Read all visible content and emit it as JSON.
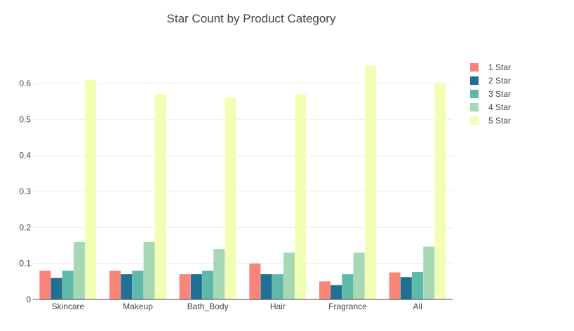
{
  "chart_data": {
    "type": "bar",
    "title": "Star Count by Product Category",
    "xlabel": "",
    "ylabel": "",
    "categories": [
      "Skincare",
      "Makeup",
      "Bath_Body",
      "Hair",
      "Fragrance",
      "All"
    ],
    "ylim": [
      0,
      0.68
    ],
    "yticks": [
      0,
      0.1,
      0.2,
      0.3,
      0.4,
      0.5,
      0.6
    ],
    "ytick_labels": [
      "0",
      "0.1",
      "0.2",
      "0.3",
      "0.4",
      "0.5",
      "0.6"
    ],
    "grid": true,
    "legend_position": "top-right",
    "series": [
      {
        "name": "1 Star",
        "color": "#f8847a",
        "values": [
          0.08,
          0.08,
          0.07,
          0.1,
          0.05,
          0.075
        ]
      },
      {
        "name": "2 Star",
        "color": "#226f94",
        "values": [
          0.06,
          0.07,
          0.07,
          0.07,
          0.04,
          0.062
        ]
      },
      {
        "name": "3 Star",
        "color": "#5fb9a9",
        "values": [
          0.08,
          0.08,
          0.08,
          0.07,
          0.07,
          0.076
        ]
      },
      {
        "name": "4 Star",
        "color": "#a6d8b5",
        "values": [
          0.16,
          0.16,
          0.14,
          0.13,
          0.13,
          0.147
        ]
      },
      {
        "name": "5 Star",
        "color": "#f0ffb3",
        "values": [
          0.61,
          0.57,
          0.56,
          0.57,
          0.65,
          0.6
        ]
      }
    ]
  }
}
